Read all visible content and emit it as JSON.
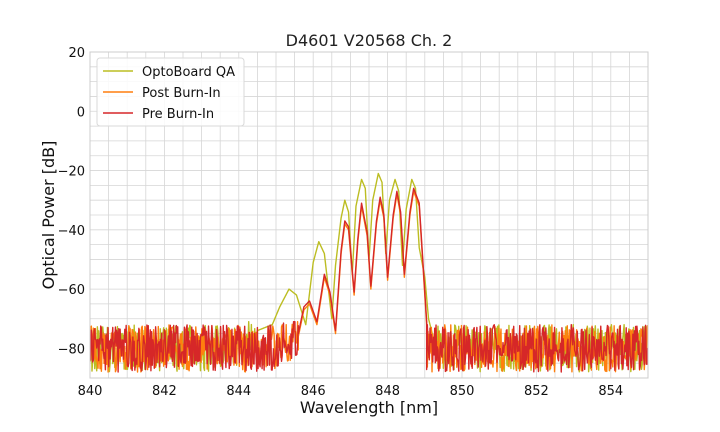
{
  "chart_data": {
    "type": "line",
    "title": "D4601 V20568 Ch. 2",
    "xlabel": "Wavelength [nm]",
    "ylabel": "Optical Power [dB]",
    "xlim": [
      840,
      855
    ],
    "ylim": [
      -90,
      20
    ],
    "x_ticks": [
      840,
      842,
      844,
      846,
      848,
      850,
      852,
      854
    ],
    "y_ticks": [
      20,
      0,
      -20,
      -40,
      -60,
      -80
    ],
    "x_tick_labels": [
      "840",
      "842",
      "844",
      "846",
      "848",
      "850",
      "852",
      "854"
    ],
    "y_tick_labels": [
      "20",
      "0",
      "−20",
      "−40",
      "−60",
      "−80"
    ],
    "x_minor_step": 0.5,
    "y_minor_step": 5,
    "grid": true,
    "legend_position": "top-left",
    "noise_floor": {
      "mean": -80,
      "min": -90,
      "max": -71
    },
    "series": [
      {
        "name": "OptoBoard QA",
        "color": "#bcbd22",
        "points": [
          [
            844.0,
            -80
          ],
          [
            844.5,
            -74
          ],
          [
            844.9,
            -72
          ],
          [
            845.1,
            -66
          ],
          [
            845.35,
            -60
          ],
          [
            845.55,
            -62
          ],
          [
            845.8,
            -72
          ],
          [
            846.0,
            -51
          ],
          [
            846.15,
            -44
          ],
          [
            846.3,
            -48
          ],
          [
            846.5,
            -70
          ],
          [
            846.6,
            -52
          ],
          [
            846.75,
            -36
          ],
          [
            846.85,
            -30
          ],
          [
            846.95,
            -34
          ],
          [
            847.05,
            -55
          ],
          [
            847.15,
            -32
          ],
          [
            847.3,
            -23
          ],
          [
            847.4,
            -26
          ],
          [
            847.5,
            -50
          ],
          [
            847.6,
            -30
          ],
          [
            847.75,
            -21
          ],
          [
            847.85,
            -24
          ],
          [
            847.95,
            -48
          ],
          [
            848.05,
            -30
          ],
          [
            848.2,
            -23
          ],
          [
            848.3,
            -27
          ],
          [
            848.4,
            -52
          ],
          [
            848.5,
            -33
          ],
          [
            848.65,
            -23
          ],
          [
            848.75,
            -26
          ],
          [
            848.85,
            -46
          ],
          [
            849.0,
            -56
          ],
          [
            849.1,
            -70
          ],
          [
            849.3,
            -80
          ],
          [
            850.0,
            -80
          ],
          [
            855.0,
            -80
          ]
        ]
      },
      {
        "name": "Post Burn-In",
        "color": "#ff7f0e",
        "points": [
          [
            845.0,
            -80
          ],
          [
            845.6,
            -76
          ],
          [
            845.75,
            -67
          ],
          [
            845.9,
            -65
          ],
          [
            846.1,
            -72
          ],
          [
            846.3,
            -56
          ],
          [
            846.45,
            -62
          ],
          [
            846.6,
            -75
          ],
          [
            846.75,
            -48
          ],
          [
            846.85,
            -38
          ],
          [
            846.95,
            -40
          ],
          [
            847.1,
            -62
          ],
          [
            847.2,
            -44
          ],
          [
            847.3,
            -32
          ],
          [
            847.45,
            -42
          ],
          [
            847.55,
            -60
          ],
          [
            847.7,
            -38
          ],
          [
            847.8,
            -30
          ],
          [
            847.9,
            -36
          ],
          [
            848.0,
            -57
          ],
          [
            848.15,
            -36
          ],
          [
            848.25,
            -28
          ],
          [
            848.35,
            -35
          ],
          [
            848.45,
            -56
          ],
          [
            848.6,
            -35
          ],
          [
            848.7,
            -27
          ],
          [
            848.85,
            -32
          ],
          [
            848.95,
            -52
          ],
          [
            849.05,
            -72
          ],
          [
            849.2,
            -80
          ],
          [
            855.0,
            -80
          ]
        ]
      },
      {
        "name": "Pre Burn-In",
        "color": "#d62728",
        "points": [
          [
            845.0,
            -80
          ],
          [
            845.6,
            -75
          ],
          [
            845.75,
            -66
          ],
          [
            845.9,
            -64
          ],
          [
            846.1,
            -71
          ],
          [
            846.3,
            -55
          ],
          [
            846.45,
            -61
          ],
          [
            846.6,
            -74
          ],
          [
            846.75,
            -47
          ],
          [
            846.85,
            -37
          ],
          [
            846.95,
            -39
          ],
          [
            847.1,
            -61
          ],
          [
            847.2,
            -43
          ],
          [
            847.3,
            -31
          ],
          [
            847.45,
            -41
          ],
          [
            847.55,
            -59
          ],
          [
            847.7,
            -37
          ],
          [
            847.8,
            -29
          ],
          [
            847.9,
            -35
          ],
          [
            848.0,
            -56
          ],
          [
            848.15,
            -35
          ],
          [
            848.25,
            -27
          ],
          [
            848.35,
            -34
          ],
          [
            848.45,
            -55
          ],
          [
            848.6,
            -34
          ],
          [
            848.7,
            -26
          ],
          [
            848.85,
            -31
          ],
          [
            848.95,
            -51
          ],
          [
            849.05,
            -71
          ],
          [
            849.2,
            -80
          ],
          [
            855.0,
            -80
          ]
        ]
      }
    ]
  }
}
